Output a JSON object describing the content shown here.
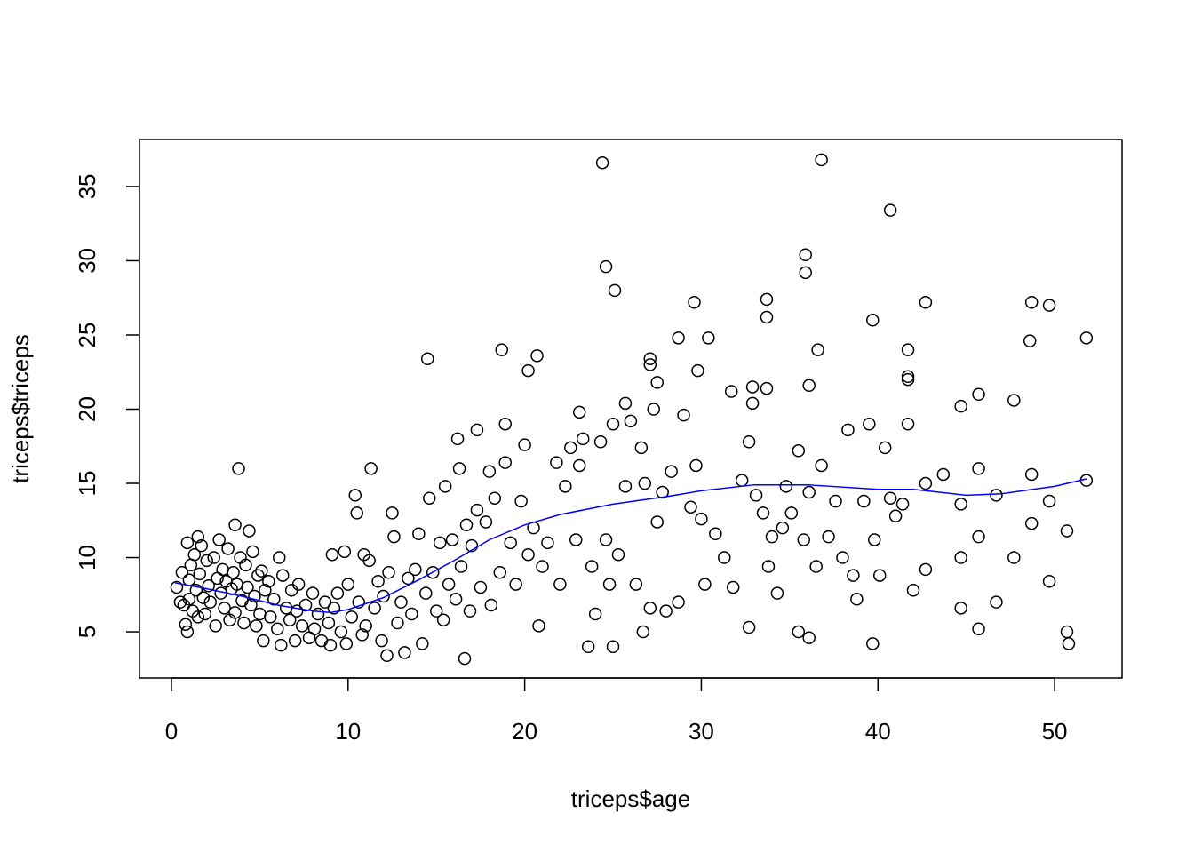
{
  "chart_data": {
    "type": "scatter",
    "x_label": "triceps$age",
    "y_label": "triceps$triceps",
    "xlim": [
      -1.81,
      53.82
    ],
    "ylim": [
      1.89,
      38.17
    ],
    "xticks": [
      0,
      10,
      20,
      30,
      40,
      50
    ],
    "yticks": [
      5,
      10,
      15,
      20,
      25,
      30,
      35
    ],
    "color": "#000000",
    "x": [
      24.4,
      36.8,
      40.7,
      35.9,
      35.9,
      24.6,
      25.1,
      29.6,
      33.7,
      33.7,
      42.7,
      48.7,
      49.7,
      39.7,
      51.8,
      48.6,
      28.7,
      30.4,
      18.7,
      36.6,
      41.7,
      14.5,
      20.7,
      27.1,
      27.1,
      20.2,
      29.8,
      41.7,
      41.7,
      27.5,
      36.1,
      31.7,
      33.7,
      32.9,
      32.9,
      45.7,
      47.7,
      44.7,
      25.7,
      23.1,
      3.8,
      11.3,
      16.2,
      17.3,
      18.9,
      0.9,
      3.6,
      4.4,
      16.6,
      12.2,
      23.6,
      25,
      39.7,
      50.8,
      50.7,
      35.5,
      36.1,
      32.7,
      45.7,
      26.7,
      0.3,
      0.5,
      0.6,
      0.7,
      0.8,
      0.9,
      1,
      1,
      1.1,
      1.2,
      1.3,
      1.4,
      1.5,
      1.5,
      1.6,
      1.7,
      1.8,
      1.9,
      2,
      2.1,
      2.2,
      2.4,
      2.5,
      2.6,
      2.7,
      2.8,
      2.9,
      3,
      3.1,
      3.2,
      3.3,
      3.4,
      3.5,
      3.6,
      3.7,
      3.9,
      4,
      4.1,
      4.2,
      4.3,
      4.5,
      4.6,
      4.7,
      4.8,
      4.9,
      5,
      5.1,
      5.2,
      5.3,
      5.5,
      5.6,
      5.8,
      6,
      6.1,
      6.2,
      6.3,
      6.5,
      6.7,
      6.8,
      7,
      7.1,
      7.2,
      7.4,
      7.6,
      7.8,
      8,
      8.1,
      8.3,
      8.5,
      8.7,
      8.9,
      9,
      9.1,
      9.2,
      9.4,
      9.6,
      9.8,
      9.9,
      10,
      10.2,
      10.4,
      10.5,
      10.6,
      10.8,
      10.9,
      11,
      11.2,
      11.5,
      11.7,
      11.9,
      12,
      12.3,
      12.5,
      12.6,
      12.8,
      13,
      13.2,
      13.4,
      13.6,
      13.8,
      14,
      14.2,
      14.4,
      14.6,
      14.8,
      15,
      15.2,
      15.4,
      15.5,
      15.7,
      15.9,
      16.1,
      16.3,
      16.4,
      16.7,
      16.9,
      17,
      17.3,
      17.5,
      17.8,
      18,
      18.1,
      18.3,
      18.6,
      18.9,
      19.2,
      19.5,
      19.8,
      20,
      20.2,
      20.5,
      20.8,
      21,
      21.3,
      21.8,
      22,
      22.3,
      22.6,
      22.9,
      23.1,
      23.3,
      23.8,
      24,
      24.3,
      24.6,
      24.8,
      25,
      25.3,
      25.7,
      26,
      26.3,
      26.6,
      26.8,
      27.1,
      27.3,
      27.5,
      27.8,
      28,
      28.3,
      28.7,
      29,
      29.4,
      29.7,
      30,
      30.2,
      30.8,
      31.3,
      31.8,
      32.3,
      32.7,
      33.1,
      33.5,
      33.8,
      34,
      34.3,
      34.6,
      34.8,
      35.1,
      35.5,
      35.8,
      36.1,
      36.5,
      36.8,
      37.2,
      37.6,
      38,
      38.3,
      38.6,
      38.8,
      39.2,
      39.5,
      39.8,
      40.1,
      40.4,
      40.7,
      41,
      41.4,
      41.7,
      42,
      42.7,
      42.7,
      43.7,
      44.7,
      44.7,
      44.7,
      45.7,
      45.7,
      46.7,
      46.7,
      47.7,
      48.7,
      48.7,
      49.7,
      49.7,
      50.7,
      51.8
    ],
    "y": [
      36.6,
      36.8,
      33.4,
      30.4,
      29.2,
      29.6,
      28,
      27.2,
      27.4,
      26.2,
      27.2,
      27.2,
      27,
      26,
      24.8,
      24.6,
      24.8,
      24.8,
      24,
      24,
      24,
      23.4,
      23.6,
      23.4,
      23,
      22.6,
      22.6,
      22.2,
      22,
      21.8,
      21.6,
      21.2,
      21.4,
      21.5,
      20.4,
      21,
      20.6,
      20.2,
      20.4,
      19.8,
      16,
      16,
      18,
      18.6,
      19,
      11,
      12.2,
      11.8,
      3.2,
      3.4,
      4,
      4,
      4.2,
      4.2,
      5,
      5,
      4.6,
      5.3,
      5.2,
      5,
      8,
      7,
      9,
      6.8,
      5.5,
      5,
      8.5,
      7.2,
      9.5,
      6.4,
      10.2,
      7.8,
      11.4,
      6,
      8.9,
      10.8,
      7.3,
      6.2,
      9.8,
      8.1,
      7,
      10,
      5.4,
      8.6,
      11.2,
      7.6,
      9.2,
      6.6,
      8.4,
      10.6,
      5.8,
      7.9,
      9,
      6.3,
      8.2,
      10,
      7.1,
      5.6,
      9.5,
      8,
      6.8,
      10.4,
      7.4,
      5.4,
      8.8,
      6.2,
      9.1,
      4.4,
      7.8,
      8.4,
      6,
      7.2,
      5.2,
      10,
      4.1,
      8.8,
      6.6,
      5.8,
      7.8,
      4.4,
      6.4,
      8.2,
      5.4,
      6.8,
      4.6,
      7.6,
      5.2,
      6.2,
      4.4,
      7,
      5.6,
      4.1,
      10.2,
      6.6,
      7.6,
      5,
      10.4,
      4.2,
      8.2,
      6,
      14.2,
      13,
      7,
      4.8,
      10.2,
      5.4,
      9.8,
      6.6,
      8.4,
      4.4,
      7.4,
      9,
      13,
      11.4,
      5.6,
      7,
      3.6,
      8.6,
      6.2,
      9.2,
      11.6,
      4.2,
      7.6,
      14,
      9,
      6.4,
      11,
      5.8,
      14.8,
      8.2,
      11.2,
      7.2,
      16,
      9.4,
      12.2,
      6.4,
      10.8,
      13.2,
      8,
      12.4,
      15.8,
      6.8,
      14,
      9,
      16.4,
      11,
      8.2,
      13.8,
      17.6,
      10.2,
      12,
      5.4,
      9.4,
      11,
      16.4,
      8.2,
      14.8,
      17.4,
      11.2,
      16.2,
      18,
      9.4,
      6.2,
      17.8,
      11.2,
      8.2,
      19,
      10.2,
      14.8,
      19.2,
      8.2,
      17.4,
      15,
      6.6,
      20,
      12.4,
      14.4,
      6.4,
      15.8,
      7,
      19.6,
      13.4,
      16.2,
      12.6,
      8.2,
      11.6,
      10,
      8,
      15.2,
      17.8,
      14.2,
      13,
      9.4,
      11.4,
      7.6,
      12,
      14.8,
      13,
      17.2,
      11.2,
      14.4,
      9.4,
      16.2,
      11.4,
      13.8,
      10,
      18.6,
      8.8,
      7.2,
      13.8,
      19,
      11.2,
      8.8,
      17.4,
      14,
      12.8,
      13.6,
      19,
      7.8,
      15,
      9.2,
      15.6,
      10,
      13.6,
      6.6,
      16,
      11.4,
      14.2,
      7,
      10,
      15.6,
      12.3,
      13.8,
      8.4,
      11.8,
      15.2
    ],
    "smooth": {
      "color": "#0000ff",
      "x": [
        0.2,
        2,
        4,
        6,
        8,
        9,
        10,
        12,
        14,
        16,
        18,
        20,
        22,
        25,
        28,
        30,
        33,
        36,
        40,
        42,
        45,
        47,
        50,
        51.8
      ],
      "y": [
        8.3,
        7.9,
        7.4,
        6.8,
        6.4,
        6.3,
        6.5,
        7.3,
        8.5,
        9.8,
        11.2,
        12.2,
        12.9,
        13.6,
        14.1,
        14.5,
        14.9,
        14.9,
        14.6,
        14.6,
        14.2,
        14.3,
        14.8,
        15.3
      ]
    }
  }
}
